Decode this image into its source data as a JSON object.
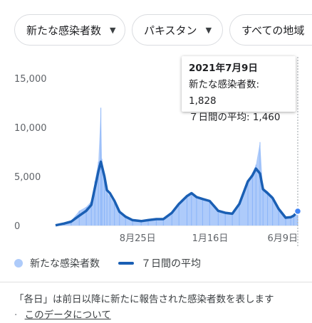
{
  "filters": [
    {
      "label": "新たな感染者数"
    },
    {
      "label": "パキスタン"
    },
    {
      "label": "すべての地域"
    }
  ],
  "tooltip": {
    "date": "2021年7月9日",
    "cases_label": "新たな感染者数: 1,828",
    "avg_label": "７日間の平均: 1,460"
  },
  "legend": {
    "daily": "新たな感染者数",
    "average": "７日間の平均"
  },
  "footer": {
    "note": "「各日」は前日以降に新たに報告された感染者数を表します",
    "separator": "·",
    "link": "このデータについて"
  },
  "colors": {
    "bars": "#aecbfa",
    "line": "#1a5fb4"
  },
  "chart_data": {
    "type": "area",
    "xlabel": "",
    "ylabel": "",
    "ylim": [
      0,
      15000
    ],
    "yticks": [
      0,
      5000,
      10000,
      15000
    ],
    "ytick_labels": [
      "0",
      "5,000",
      "10,000",
      "15,000"
    ],
    "xticks": [
      "8月25日",
      "1月16日",
      "6月9日"
    ],
    "legend_placement": "bottom",
    "grid": false,
    "series": [
      {
        "name": "新たな感染者数",
        "style": "bars",
        "x": [
          "2020-03-15",
          "2020-04-01",
          "2020-04-15",
          "2020-05-01",
          "2020-05-15",
          "2020-05-25",
          "2020-06-01",
          "2020-06-08",
          "2020-06-13",
          "2020-06-15",
          "2020-06-20",
          "2020-06-25",
          "2020-07-01",
          "2020-07-10",
          "2020-07-20",
          "2020-08-01",
          "2020-08-15",
          "2020-09-01",
          "2020-09-15",
          "2020-10-01",
          "2020-10-15",
          "2020-11-01",
          "2020-11-15",
          "2020-12-01",
          "2020-12-10",
          "2020-12-20",
          "2021-01-01",
          "2021-01-15",
          "2021-02-01",
          "2021-02-15",
          "2021-03-01",
          "2021-03-15",
          "2021-04-01",
          "2021-04-10",
          "2021-04-17",
          "2021-04-25",
          "2021-05-01",
          "2021-05-10",
          "2021-05-20",
          "2021-06-01",
          "2021-06-15",
          "2021-06-25",
          "2021-07-01",
          "2021-07-09"
        ],
        "values": [
          30,
          300,
          500,
          1500,
          1900,
          2500,
          4500,
          6500,
          12000,
          6800,
          5200,
          3400,
          3000,
          2200,
          1300,
          800,
          500,
          500,
          550,
          650,
          650,
          1400,
          2300,
          3100,
          3400,
          3000,
          2800,
          2500,
          1600,
          1400,
          1200,
          2300,
          4600,
          5400,
          6200,
          8500,
          3800,
          3500,
          3000,
          1700,
          800,
          900,
          1100,
          1828
        ]
      },
      {
        "name": "７日間の平均",
        "style": "line",
        "x": [
          "2020-03-15",
          "2020-04-01",
          "2020-04-15",
          "2020-05-01",
          "2020-05-15",
          "2020-05-25",
          "2020-06-01",
          "2020-06-08",
          "2020-06-13",
          "2020-06-20",
          "2020-06-25",
          "2020-07-01",
          "2020-07-10",
          "2020-07-20",
          "2020-08-01",
          "2020-08-15",
          "2020-09-01",
          "2020-09-15",
          "2020-10-01",
          "2020-10-15",
          "2020-11-01",
          "2020-11-15",
          "2020-12-01",
          "2020-12-10",
          "2020-12-20",
          "2021-01-01",
          "2021-01-15",
          "2021-02-01",
          "2021-02-15",
          "2021-03-01",
          "2021-03-15",
          "2021-04-01",
          "2021-04-10",
          "2021-04-17",
          "2021-04-25",
          "2021-05-01",
          "2021-05-10",
          "2021-05-20",
          "2021-06-01",
          "2021-06-15",
          "2021-06-25",
          "2021-07-01",
          "2021-07-09"
        ],
        "values": [
          20,
          200,
          400,
          1000,
          1500,
          2100,
          3800,
          5500,
          6500,
          5000,
          3600,
          3300,
          2500,
          1400,
          900,
          550,
          450,
          550,
          650,
          650,
          1300,
          2200,
          3000,
          3300,
          2900,
          2700,
          2500,
          1500,
          1300,
          1200,
          2200,
          4500,
          5100,
          5800,
          5300,
          3700,
          3300,
          2800,
          1700,
          800,
          850,
          1000,
          1460
        ]
      }
    ],
    "highlight": {
      "x": "2021-07-09",
      "value": 1460
    }
  }
}
